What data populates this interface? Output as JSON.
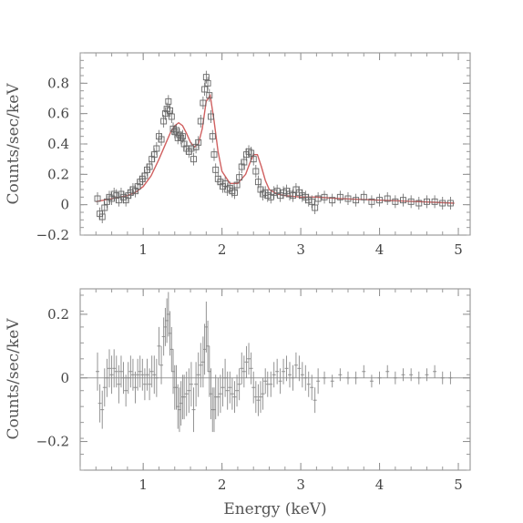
{
  "chart_data": [
    {
      "type": "scatter",
      "panel": "top",
      "ylabel": "Counts/sec/keV",
      "xlim": [
        0.2,
        5.15
      ],
      "ylim": [
        -0.2,
        1.0
      ],
      "xticks": [
        1,
        2,
        3,
        4,
        5
      ],
      "yticks": [
        -0.2,
        0,
        0.2,
        0.4,
        0.6,
        0.8
      ],
      "ytick_labels": [
        "−0.2",
        "0",
        "0.2",
        "0.4",
        "0.6",
        "0.8"
      ],
      "xtick_labels": [
        "1",
        "2",
        "3",
        "4",
        "5"
      ],
      "model_color": "#d06060",
      "data_color": "#666666",
      "data": {
        "x": [
          0.42,
          0.45,
          0.48,
          0.51,
          0.54,
          0.57,
          0.6,
          0.63,
          0.66,
          0.69,
          0.72,
          0.75,
          0.78,
          0.81,
          0.84,
          0.87,
          0.9,
          0.93,
          0.96,
          0.99,
          1.02,
          1.05,
          1.08,
          1.11,
          1.14,
          1.17,
          1.2,
          1.23,
          1.26,
          1.28,
          1.3,
          1.32,
          1.34,
          1.36,
          1.38,
          1.4,
          1.42,
          1.44,
          1.46,
          1.48,
          1.5,
          1.52,
          1.55,
          1.58,
          1.61,
          1.64,
          1.67,
          1.7,
          1.73,
          1.76,
          1.78,
          1.8,
          1.82,
          1.84,
          1.86,
          1.88,
          1.9,
          1.92,
          1.95,
          1.98,
          2.01,
          2.04,
          2.07,
          2.1,
          2.13,
          2.16,
          2.19,
          2.22,
          2.25,
          2.28,
          2.31,
          2.34,
          2.37,
          2.4,
          2.43,
          2.46,
          2.49,
          2.52,
          2.55,
          2.58,
          2.62,
          2.66,
          2.7,
          2.74,
          2.78,
          2.82,
          2.86,
          2.9,
          2.94,
          2.98,
          3.02,
          3.06,
          3.1,
          3.14,
          3.18,
          3.22,
          3.3,
          3.4,
          3.5,
          3.6,
          3.7,
          3.8,
          3.9,
          4.0,
          4.1,
          4.2,
          4.3,
          4.4,
          4.5,
          4.6,
          4.7,
          4.8,
          4.9
        ],
        "y": [
          0.04,
          -0.06,
          -0.08,
          -0.02,
          0.02,
          0.05,
          0.04,
          0.07,
          0.06,
          0.03,
          0.07,
          0.05,
          0.03,
          0.06,
          0.08,
          0.1,
          0.09,
          0.12,
          0.15,
          0.17,
          0.19,
          0.23,
          0.25,
          0.3,
          0.33,
          0.37,
          0.45,
          0.43,
          0.55,
          0.6,
          0.63,
          0.68,
          0.62,
          0.58,
          0.5,
          0.48,
          0.49,
          0.44,
          0.46,
          0.44,
          0.45,
          0.4,
          0.37,
          0.35,
          0.37,
          0.3,
          0.38,
          0.41,
          0.55,
          0.67,
          0.76,
          0.84,
          0.8,
          0.72,
          0.58,
          0.45,
          0.33,
          0.23,
          0.17,
          0.15,
          0.12,
          0.14,
          0.1,
          0.11,
          0.09,
          0.08,
          0.13,
          0.18,
          0.25,
          0.28,
          0.33,
          0.35,
          0.34,
          0.3,
          0.22,
          0.15,
          0.1,
          0.07,
          0.08,
          0.06,
          0.05,
          0.08,
          0.09,
          0.06,
          0.08,
          0.09,
          0.07,
          0.06,
          0.1,
          0.08,
          0.06,
          0.05,
          0.03,
          0.02,
          -0.02,
          0.04,
          0.05,
          0.03,
          0.05,
          0.04,
          0.03,
          0.05,
          0.02,
          0.03,
          0.04,
          0.02,
          0.03,
          0.02,
          0.01,
          0.02,
          0.02,
          0.01,
          0.01
        ]
      },
      "model": {
        "x": [
          0.4,
          0.5,
          0.6,
          0.7,
          0.8,
          0.9,
          1.0,
          1.1,
          1.2,
          1.3,
          1.35,
          1.4,
          1.45,
          1.5,
          1.55,
          1.6,
          1.65,
          1.7,
          1.75,
          1.8,
          1.85,
          1.9,
          1.95,
          2.0,
          2.1,
          2.2,
          2.3,
          2.35,
          2.4,
          2.45,
          2.5,
          2.55,
          2.6,
          2.7,
          2.8,
          3.0,
          3.2,
          3.5,
          4.0,
          4.5,
          4.95
        ],
        "y": [
          0.02,
          0.03,
          0.04,
          0.05,
          0.06,
          0.08,
          0.12,
          0.19,
          0.3,
          0.42,
          0.48,
          0.52,
          0.54,
          0.52,
          0.47,
          0.41,
          0.38,
          0.4,
          0.5,
          0.68,
          0.72,
          0.55,
          0.35,
          0.22,
          0.14,
          0.14,
          0.2,
          0.27,
          0.33,
          0.33,
          0.25,
          0.16,
          0.1,
          0.07,
          0.06,
          0.05,
          0.05,
          0.04,
          0.03,
          0.02,
          0.01
        ]
      }
    },
    {
      "type": "scatter",
      "panel": "bottom",
      "xlabel": "Energy (keV)",
      "ylabel": "Counts/sec/keV",
      "xlim": [
        0.2,
        5.15
      ],
      "ylim": [
        -0.29,
        0.28
      ],
      "xticks": [
        1,
        2,
        3,
        4,
        5
      ],
      "yticks": [
        -0.2,
        0,
        0.2
      ],
      "ytick_labels": [
        "−0.2",
        "0",
        "0.2"
      ],
      "xtick_labels": [
        "1",
        "2",
        "3",
        "4",
        "5"
      ],
      "data_color": "#888888",
      "residuals": {
        "x": [
          0.42,
          0.45,
          0.48,
          0.51,
          0.54,
          0.57,
          0.6,
          0.63,
          0.66,
          0.69,
          0.72,
          0.75,
          0.78,
          0.81,
          0.84,
          0.87,
          0.9,
          0.93,
          0.96,
          0.99,
          1.02,
          1.05,
          1.08,
          1.11,
          1.14,
          1.17,
          1.2,
          1.23,
          1.26,
          1.28,
          1.3,
          1.32,
          1.34,
          1.36,
          1.38,
          1.4,
          1.42,
          1.44,
          1.46,
          1.48,
          1.5,
          1.52,
          1.55,
          1.58,
          1.61,
          1.64,
          1.67,
          1.7,
          1.73,
          1.76,
          1.78,
          1.8,
          1.82,
          1.84,
          1.86,
          1.88,
          1.9,
          1.92,
          1.95,
          1.98,
          2.01,
          2.04,
          2.07,
          2.1,
          2.13,
          2.16,
          2.19,
          2.22,
          2.25,
          2.28,
          2.31,
          2.34,
          2.37,
          2.4,
          2.43,
          2.46,
          2.49,
          2.52,
          2.55,
          2.58,
          2.62,
          2.66,
          2.7,
          2.74,
          2.78,
          2.82,
          2.86,
          2.9,
          2.94,
          2.98,
          3.02,
          3.06,
          3.1,
          3.14,
          3.18,
          3.22,
          3.3,
          3.4,
          3.5,
          3.6,
          3.7,
          3.8,
          3.9,
          4.0,
          4.1,
          4.2,
          4.3,
          4.4,
          4.5,
          4.6,
          4.7,
          4.8,
          4.9
        ],
        "y": [
          0.02,
          -0.08,
          -0.1,
          -0.03,
          0.0,
          0.03,
          0.01,
          0.03,
          0.02,
          -0.02,
          0.02,
          0.0,
          -0.04,
          0.0,
          0.02,
          0.01,
          -0.03,
          0.01,
          0.02,
          0.01,
          -0.02,
          0.01,
          -0.02,
          0.02,
          0.01,
          0.0,
          0.1,
          0.04,
          0.13,
          0.16,
          0.18,
          0.2,
          0.14,
          0.09,
          0.02,
          -0.03,
          -0.03,
          -0.09,
          -0.1,
          -0.08,
          -0.06,
          -0.06,
          -0.05,
          -0.04,
          -0.02,
          -0.1,
          -0.02,
          0.01,
          0.04,
          0.05,
          0.09,
          0.16,
          0.1,
          0.02,
          -0.05,
          -0.1,
          -0.1,
          -0.06,
          -0.06,
          -0.05,
          -0.03,
          0.0,
          -0.04,
          -0.03,
          -0.05,
          -0.06,
          -0.04,
          -0.02,
          0.03,
          0.02,
          0.05,
          0.06,
          0.03,
          -0.03,
          -0.06,
          -0.07,
          -0.06,
          -0.05,
          -0.01,
          -0.02,
          -0.02,
          0.01,
          0.02,
          -0.01,
          0.02,
          0.03,
          0.01,
          0.0,
          0.04,
          0.03,
          0.01,
          0.0,
          -0.02,
          -0.03,
          -0.07,
          -0.01,
          0.0,
          -0.01,
          0.01,
          0.0,
          0.0,
          0.02,
          -0.01,
          0.0,
          0.02,
          0.0,
          0.01,
          0.01,
          0.0,
          0.01,
          0.02,
          0.0,
          0.0
        ],
        "err": [
          0.06,
          0.06,
          0.06,
          0.06,
          0.06,
          0.06,
          0.06,
          0.06,
          0.05,
          0.06,
          0.05,
          0.05,
          0.05,
          0.05,
          0.05,
          0.05,
          0.05,
          0.05,
          0.05,
          0.05,
          0.05,
          0.05,
          0.05,
          0.05,
          0.06,
          0.06,
          0.06,
          0.06,
          0.06,
          0.06,
          0.07,
          0.07,
          0.07,
          0.07,
          0.07,
          0.07,
          0.07,
          0.07,
          0.07,
          0.07,
          0.07,
          0.07,
          0.07,
          0.07,
          0.07,
          0.07,
          0.07,
          0.07,
          0.07,
          0.08,
          0.08,
          0.08,
          0.08,
          0.08,
          0.08,
          0.07,
          0.07,
          0.07,
          0.06,
          0.06,
          0.06,
          0.06,
          0.06,
          0.05,
          0.05,
          0.05,
          0.05,
          0.05,
          0.05,
          0.05,
          0.05,
          0.05,
          0.05,
          0.05,
          0.05,
          0.05,
          0.05,
          0.05,
          0.04,
          0.04,
          0.04,
          0.04,
          0.04,
          0.04,
          0.04,
          0.04,
          0.04,
          0.04,
          0.04,
          0.04,
          0.04,
          0.04,
          0.04,
          0.04,
          0.04,
          0.04,
          0.02,
          0.02,
          0.02,
          0.02,
          0.02,
          0.02,
          0.02,
          0.02,
          0.02,
          0.02,
          0.02,
          0.02,
          0.02,
          0.02,
          0.02,
          0.02,
          0.02
        ]
      }
    }
  ]
}
